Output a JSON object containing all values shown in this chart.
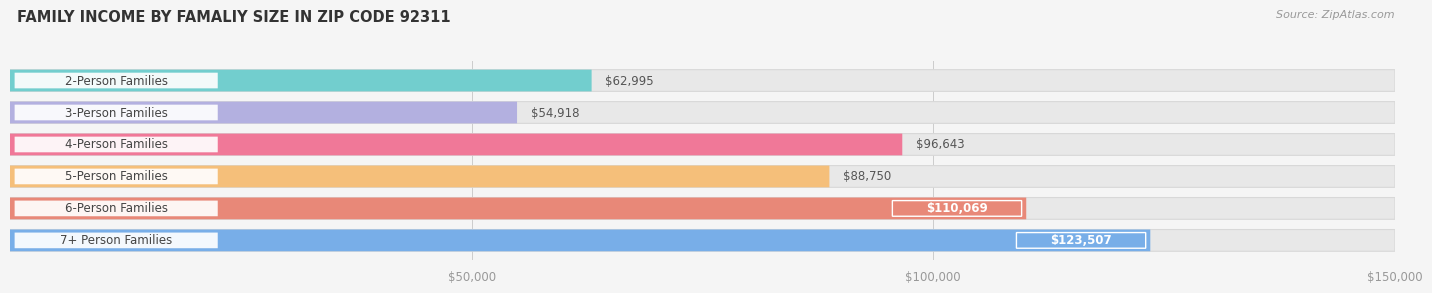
{
  "title": "FAMILY INCOME BY FAMALIY SIZE IN ZIP CODE 92311",
  "source": "Source: ZipAtlas.com",
  "categories": [
    "2-Person Families",
    "3-Person Families",
    "4-Person Families",
    "5-Person Families",
    "6-Person Families",
    "7+ Person Families"
  ],
  "values": [
    62995,
    54918,
    96643,
    88750,
    110069,
    123507
  ],
  "labels": [
    "$62,995",
    "$54,918",
    "$96,643",
    "$88,750",
    "$110,069",
    "$123,507"
  ],
  "bar_colors": [
    "#72cece",
    "#b3b0e0",
    "#f07898",
    "#f5bf7a",
    "#e88878",
    "#78aee8"
  ],
  "background_color": "#f5f5f5",
  "bar_bg_color": "#e8e8e8",
  "xlim_max": 150000,
  "xticks": [
    50000,
    100000,
    150000
  ],
  "xticklabels": [
    "$50,000",
    "$100,000",
    "$150,000"
  ],
  "title_fontsize": 10.5,
  "source_fontsize": 8,
  "label_fontsize": 8.5,
  "category_fontsize": 8.5,
  "bar_height": 0.68,
  "label_pill_threshold": 100000
}
